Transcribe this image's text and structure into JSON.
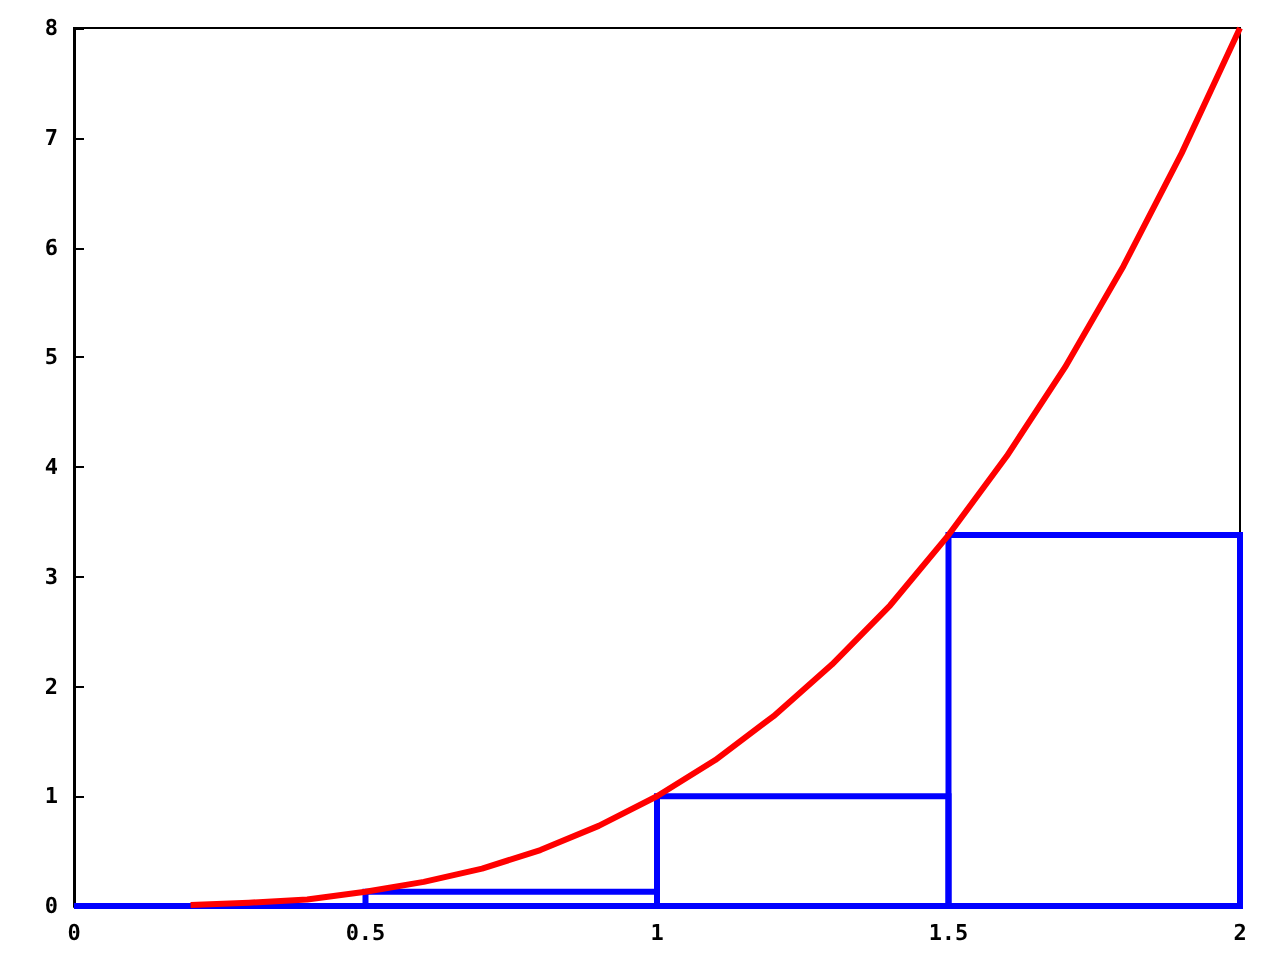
{
  "chart_data": {
    "type": "histogram",
    "bins": [
      0,
      0.5,
      1,
      1.5,
      2
    ],
    "series": [
      {
        "color": "#0000ff",
        "values": [
          0,
          0.13,
          1,
          3.38
        ]
      },
      {
        "type": "line",
        "color": "#ff0000",
        "x": [
          0.2,
          0.3,
          0.4,
          0.5,
          0.6,
          0.7,
          0.8,
          0.9,
          1.0,
          1.1,
          1.2,
          1.3,
          1.4,
          1.5,
          1.6,
          1.7,
          1.8,
          1.9,
          2.0
        ],
        "values": [
          0.01,
          0.03,
          0.06,
          0.13,
          0.22,
          0.34,
          0.51,
          0.73,
          1.0,
          1.33,
          1.73,
          2.2,
          2.74,
          3.38,
          4.1,
          4.91,
          5.83,
          6.86,
          8
        ]
      }
    ],
    "xlim": [
      0,
      2
    ],
    "ylim": [
      0,
      8
    ],
    "xticks": [
      0,
      0.5,
      1,
      1.5,
      2
    ],
    "yticks": [
      0,
      1,
      2,
      3,
      4,
      5,
      6,
      7,
      8
    ],
    "grid": false,
    "marker": "none"
  }
}
